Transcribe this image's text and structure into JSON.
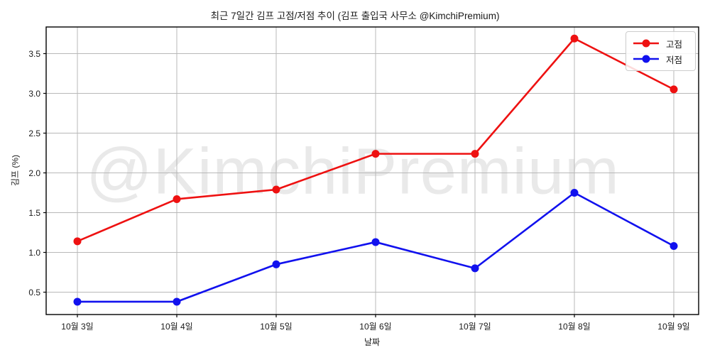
{
  "watermark": "@KimchiPremium",
  "chart_data": {
    "type": "line",
    "title": "최근 7일간 김프 고점/저점 추이 (김프 출입국 사무소 @KimchiPremium)",
    "xlabel": "날짜",
    "ylabel": "김프 (%)",
    "categories": [
      "10월 3일",
      "10월 4일",
      "10월 5일",
      "10월 6일",
      "10월 7일",
      "10월 8일",
      "10월 9일"
    ],
    "series": [
      {
        "name": "고점",
        "color": "#ee1111",
        "values": [
          1.14,
          1.67,
          1.79,
          2.24,
          2.24,
          3.69,
          3.05
        ]
      },
      {
        "name": "저점",
        "color": "#1111ee",
        "values": [
          0.38,
          0.38,
          0.85,
          1.13,
          0.8,
          1.75,
          1.08
        ]
      }
    ],
    "y_ticks": [
      0.5,
      1.0,
      1.5,
      2.0,
      2.5,
      3.0,
      3.5
    ],
    "ylim": [
      0.21,
      3.86
    ],
    "grid": true,
    "legend_position": "top-right",
    "grid_color": "#b8b8b8",
    "spine_color": "#000000"
  }
}
